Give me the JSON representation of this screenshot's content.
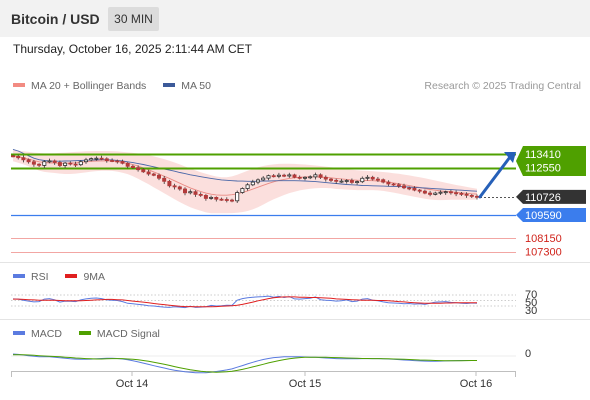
{
  "header": {
    "title": "Bitcoin / USD",
    "interval": "30 MIN"
  },
  "timestamp": "Thursday, October 16, 2025 2:11:44 AM CET",
  "credit": "Research © 2025 Trading Central",
  "colors": {
    "ma20": "#f28b82",
    "ma50": "#3c5a99",
    "resistance": "#4fa000",
    "support": "#3b7ded",
    "target": "#e8302a",
    "rsi": "#5b7be0",
    "rsi_ma": "#e01f1f",
    "macd": "#5b7be0",
    "macd_signal": "#4fa000",
    "arrow": "#2660b8",
    "current": "#333333"
  },
  "chart_data": [
    {
      "type": "candlestick",
      "legend": [
        {
          "label": "MA 20 + Bollinger Bands",
          "color": "#f28b82"
        },
        {
          "label": "MA 50",
          "color": "#3c5a99"
        }
      ],
      "x_ticks": [
        "Oct 14",
        "Oct 15",
        "Oct 16"
      ],
      "y_range": [
        107000,
        114800
      ],
      "close": [
        113260,
        113180,
        113050,
        112920,
        112770,
        112700,
        112930,
        112980,
        112880,
        112690,
        112840,
        112780,
        112740,
        112930,
        113040,
        113120,
        113150,
        113110,
        113000,
        112980,
        112940,
        112830,
        112640,
        112560,
        112430,
        112290,
        112160,
        112080,
        111890,
        111700,
        111420,
        111350,
        111220,
        110980,
        111050,
        110880,
        110820,
        110630,
        110690,
        110580,
        110560,
        110520,
        110480,
        111000,
        111250,
        111480,
        111650,
        111790,
        111900,
        112050,
        112010,
        112080,
        112030,
        112100,
        111950,
        111930,
        111950,
        111980,
        112110,
        111950,
        111840,
        111760,
        111700,
        111710,
        111750,
        111630,
        111680,
        111890,
        111950,
        111840,
        111800,
        111650,
        111530,
        111490,
        111410,
        111290,
        111270,
        111150,
        111080,
        110960,
        110880,
        110960,
        111020,
        111050,
        110980,
        110940,
        110890,
        110820,
        110760,
        110720
      ],
      "ma20": [
        113300,
        113240,
        113170,
        113090,
        113000,
        112920,
        112870,
        112850,
        112840,
        112830,
        112830,
        112840,
        112860,
        112890,
        112920,
        112950,
        112970,
        112980,
        112980,
        112970,
        112940,
        112890,
        112830,
        112750,
        112650,
        112540,
        112420,
        112290,
        112160,
        112020,
        111880,
        111730,
        111580,
        111430,
        111290,
        111170,
        111060,
        110960,
        110890,
        110850,
        110830,
        110830,
        110860,
        110920,
        111000,
        111100,
        111210,
        111330,
        111450,
        111570,
        111670,
        111750,
        111820,
        111880,
        111920,
        111950,
        111970,
        111980,
        111980,
        111970,
        111950,
        111920,
        111880,
        111850,
        111820,
        111790,
        111770,
        111760,
        111750,
        111740,
        111720,
        111690,
        111650,
        111600,
        111550,
        111490,
        111430,
        111370,
        111310,
        111250,
        111190,
        111140,
        111100,
        111070,
        111040,
        111010,
        110980,
        110950,
        110920,
        110900
      ],
      "bb_upper": [
        113650,
        113620,
        113580,
        113540,
        113500,
        113470,
        113450,
        113450,
        113460,
        113480,
        113500,
        113520,
        113540,
        113560,
        113580,
        113590,
        113600,
        113600,
        113600,
        113590,
        113570,
        113540,
        113510,
        113480,
        113440,
        113390,
        113330,
        113260,
        113180,
        113090,
        112990,
        112880,
        112760,
        112630,
        112500,
        112380,
        112270,
        112170,
        112080,
        112000,
        111960,
        111960,
        112010,
        112110,
        112230,
        112360,
        112480,
        112580,
        112660,
        112720,
        112760,
        112790,
        112800,
        112800,
        112790,
        112770,
        112750,
        112720,
        112690,
        112660,
        112620,
        112580,
        112540,
        112500,
        112460,
        112420,
        112390,
        112370,
        112350,
        112330,
        112310,
        112280,
        112250,
        112210,
        112170,
        112120,
        112070,
        112010,
        111950,
        111890,
        111820,
        111750,
        111680,
        111610,
        111540,
        111470,
        111410,
        111350,
        111290,
        111240
      ],
      "bb_lower": [
        112950,
        112860,
        112760,
        112640,
        112500,
        112370,
        112290,
        112250,
        112220,
        112180,
        112160,
        112160,
        112180,
        112220,
        112260,
        112310,
        112340,
        112360,
        112360,
        112350,
        112310,
        112240,
        112150,
        112020,
        111860,
        111690,
        111510,
        111320,
        111140,
        110950,
        110770,
        110580,
        110400,
        110230,
        110080,
        109960,
        109850,
        109750,
        109700,
        109700,
        109700,
        109700,
        109710,
        109730,
        109770,
        109840,
        109940,
        110080,
        110240,
        110420,
        110580,
        110710,
        110840,
        110960,
        111050,
        111130,
        111190,
        111240,
        111270,
        111280,
        111280,
        111260,
        111220,
        111200,
        111180,
        111160,
        111150,
        111150,
        111150,
        111150,
        111130,
        111100,
        111050,
        110990,
        110930,
        110860,
        110790,
        110730,
        110670,
        110610,
        110560,
        110530,
        110520,
        110530,
        110540,
        110550,
        110550,
        110550,
        110550,
        110560
      ],
      "ma50": [
        113700,
        113600,
        113450,
        113300,
        113150,
        113050,
        113000,
        112970,
        112960,
        112960,
        112970,
        112980,
        112990,
        113000,
        113020,
        113030,
        113040,
        113050,
        113050,
        113040,
        113010,
        112970,
        112920,
        112870,
        112810,
        112750,
        112680,
        112610,
        112540,
        112470,
        112400,
        112330,
        112250,
        112180,
        112110,
        112050,
        111990,
        111930,
        111880,
        111830,
        111790,
        111760,
        111740,
        111720,
        111710,
        111700,
        111700,
        111700,
        111710,
        111720,
        111730,
        111740,
        111740,
        111740,
        111740,
        111730,
        111720,
        111700,
        111680,
        111650,
        111620,
        111590,
        111560,
        111530,
        111500,
        111480,
        111460,
        111440,
        111430,
        111420,
        111410,
        111400,
        111390,
        111380,
        111370,
        111360,
        111340,
        111320,
        111300,
        111280,
        111260,
        111240,
        111220,
        111200,
        111180,
        111160,
        111140,
        111120,
        111100,
        111080
      ],
      "levels": [
        {
          "value": 113410,
          "label": "113410",
          "kind": "resistance"
        },
        {
          "value": 112550,
          "label": "112550",
          "kind": "resistance"
        },
        {
          "value": 110726,
          "label": "110726",
          "kind": "current"
        },
        {
          "value": 109590,
          "label": "109590",
          "kind": "support"
        },
        {
          "value": 108150,
          "label": "108150",
          "kind": "target"
        },
        {
          "value": 107300,
          "label": "107300",
          "kind": "target"
        }
      ],
      "projection": {
        "from_value": 110726,
        "to_value": 113410
      }
    },
    {
      "type": "line",
      "legend": [
        {
          "label": "RSI",
          "color": "#5b7be0"
        },
        {
          "label": "9MA",
          "color": "#e01f1f"
        }
      ],
      "y_range": [
        20,
        80
      ],
      "y_ticks": [
        {
          "value": 70,
          "label": "70"
        },
        {
          "value": 50,
          "label": "50"
        },
        {
          "value": 30,
          "label": "30"
        }
      ],
      "series": [
        {
          "name": "RSI",
          "values": [
            56,
            55,
            51,
            48,
            45,
            46,
            55,
            57,
            52,
            44,
            48,
            47,
            46,
            52,
            56,
            58,
            59,
            57,
            52,
            51,
            50,
            46,
            40,
            38,
            36,
            34,
            31,
            30,
            28,
            26,
            25,
            27,
            26,
            24,
            29,
            25,
            26,
            27,
            32,
            30,
            31,
            33,
            32,
            51,
            57,
            60,
            62,
            63,
            64,
            66,
            62,
            65,
            61,
            64,
            56,
            55,
            57,
            58,
            63,
            53,
            51,
            50,
            48,
            49,
            52,
            46,
            48,
            55,
            57,
            51,
            49,
            45,
            42,
            41,
            40,
            38,
            39,
            37,
            38,
            36,
            40,
            44,
            45,
            46,
            43,
            42,
            40,
            39,
            41,
            40
          ]
        },
        {
          "name": "9MA",
          "values": [
            55,
            55,
            54,
            53,
            52,
            51,
            51,
            51,
            51,
            50,
            49,
            49,
            49,
            49,
            50,
            51,
            52,
            53,
            54,
            54,
            53,
            52,
            50,
            48,
            46,
            44,
            42,
            39,
            37,
            35,
            33,
            31,
            29,
            28,
            28,
            27,
            27,
            27,
            27,
            28,
            29,
            30,
            31,
            33,
            36,
            40,
            44,
            49,
            53,
            57,
            60,
            62,
            63,
            63,
            63,
            62,
            62,
            61,
            61,
            60,
            59,
            58,
            56,
            55,
            54,
            53,
            52,
            51,
            51,
            51,
            50,
            50,
            49,
            48,
            46,
            45,
            43,
            42,
            41,
            40,
            40,
            40,
            40,
            41,
            41,
            42,
            42,
            42,
            42,
            42
          ]
        }
      ]
    },
    {
      "type": "line",
      "legend": [
        {
          "label": "MACD",
          "color": "#5b7be0"
        },
        {
          "label": "MACD Signal",
          "color": "#4fa000"
        }
      ],
      "y_range": [
        -1200,
        500
      ],
      "y_ticks": [
        {
          "value": 0,
          "label": "0"
        }
      ],
      "series": [
        {
          "name": "MACD",
          "values": [
            120,
            100,
            60,
            20,
            -20,
            -40,
            -40,
            -50,
            -70,
            -110,
            -140,
            -170,
            -190,
            -200,
            -200,
            -190,
            -170,
            -150,
            -140,
            -140,
            -150,
            -180,
            -230,
            -290,
            -360,
            -430,
            -510,
            -590,
            -660,
            -730,
            -800,
            -860,
            -910,
            -960,
            -990,
            -1010,
            -1020,
            -1010,
            -980,
            -940,
            -890,
            -840,
            -780,
            -680,
            -580,
            -480,
            -380,
            -290,
            -210,
            -150,
            -100,
            -70,
            -50,
            -40,
            -40,
            -50,
            -60,
            -70,
            -80,
            -100,
            -120,
            -140,
            -160,
            -170,
            -170,
            -170,
            -170,
            -160,
            -160,
            -160,
            -160,
            -170,
            -180,
            -200,
            -220,
            -240,
            -260,
            -280,
            -300,
            -310,
            -320,
            -320,
            -310,
            -300,
            -290,
            -280,
            -270,
            -270,
            -270,
            -270
          ]
        },
        {
          "name": "MACD Signal",
          "values": [
            80,
            80,
            70,
            60,
            40,
            20,
            0,
            -10,
            -30,
            -50,
            -70,
            -90,
            -120,
            -140,
            -160,
            -170,
            -180,
            -180,
            -170,
            -160,
            -160,
            -160,
            -180,
            -200,
            -230,
            -270,
            -320,
            -380,
            -440,
            -500,
            -570,
            -640,
            -710,
            -770,
            -830,
            -880,
            -920,
            -950,
            -970,
            -980,
            -970,
            -950,
            -920,
            -870,
            -810,
            -740,
            -660,
            -580,
            -500,
            -420,
            -350,
            -280,
            -220,
            -170,
            -130,
            -100,
            -80,
            -70,
            -70,
            -70,
            -80,
            -90,
            -100,
            -110,
            -120,
            -130,
            -140,
            -150,
            -150,
            -155,
            -160,
            -165,
            -170,
            -180,
            -190,
            -200,
            -210,
            -225,
            -240,
            -250,
            -260,
            -270,
            -280,
            -285,
            -290,
            -290,
            -285,
            -280,
            -275,
            -270
          ]
        }
      ]
    }
  ]
}
